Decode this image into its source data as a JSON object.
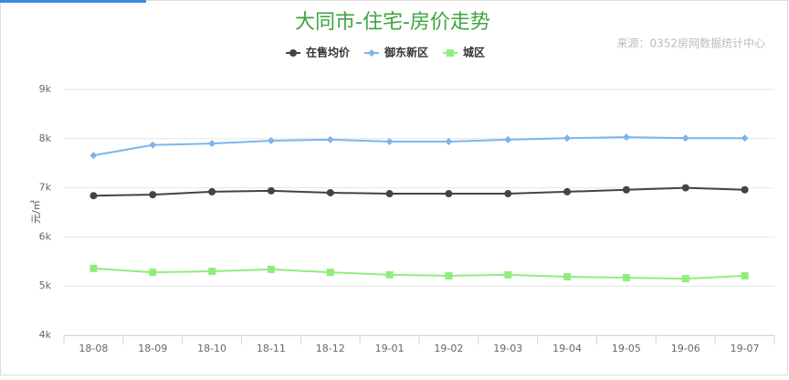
{
  "chart_data": {
    "type": "line",
    "title": "大同市-住宅-房价走势",
    "source": "来源：0352房网数据统计中心",
    "y_label": "元/㎡",
    "categories": [
      "18-08",
      "18-09",
      "18-10",
      "18-11",
      "18-12",
      "19-01",
      "19-02",
      "19-03",
      "19-04",
      "19-05",
      "19-06",
      "19-07"
    ],
    "series": [
      {
        "name": "在售均价",
        "color": "#434348",
        "marker": "circle",
        "values": [
          6840,
          6860,
          6920,
          6940,
          6900,
          6880,
          6880,
          6880,
          6920,
          6960,
          7000,
          6960
        ]
      },
      {
        "name": "御东新区",
        "color": "#7cb5ec",
        "marker": "diamond",
        "values": [
          7660,
          7870,
          7900,
          7960,
          7980,
          7940,
          7940,
          7980,
          8010,
          8030,
          8010,
          8010
        ]
      },
      {
        "name": "城区",
        "color": "#90ed7d",
        "marker": "square",
        "values": [
          5360,
          5280,
          5300,
          5340,
          5280,
          5230,
          5210,
          5230,
          5190,
          5170,
          5150,
          5210
        ]
      }
    ],
    "ylim": [
      4000,
      9000
    ],
    "yticks": [
      {
        "value": 4000,
        "label": "4k"
      },
      {
        "value": 5000,
        "label": "5k"
      },
      {
        "value": 6000,
        "label": "6k"
      },
      {
        "value": 7000,
        "label": "7k"
      },
      {
        "value": 8000,
        "label": "8k"
      },
      {
        "value": 9000,
        "label": "9k"
      }
    ],
    "grid": true
  }
}
